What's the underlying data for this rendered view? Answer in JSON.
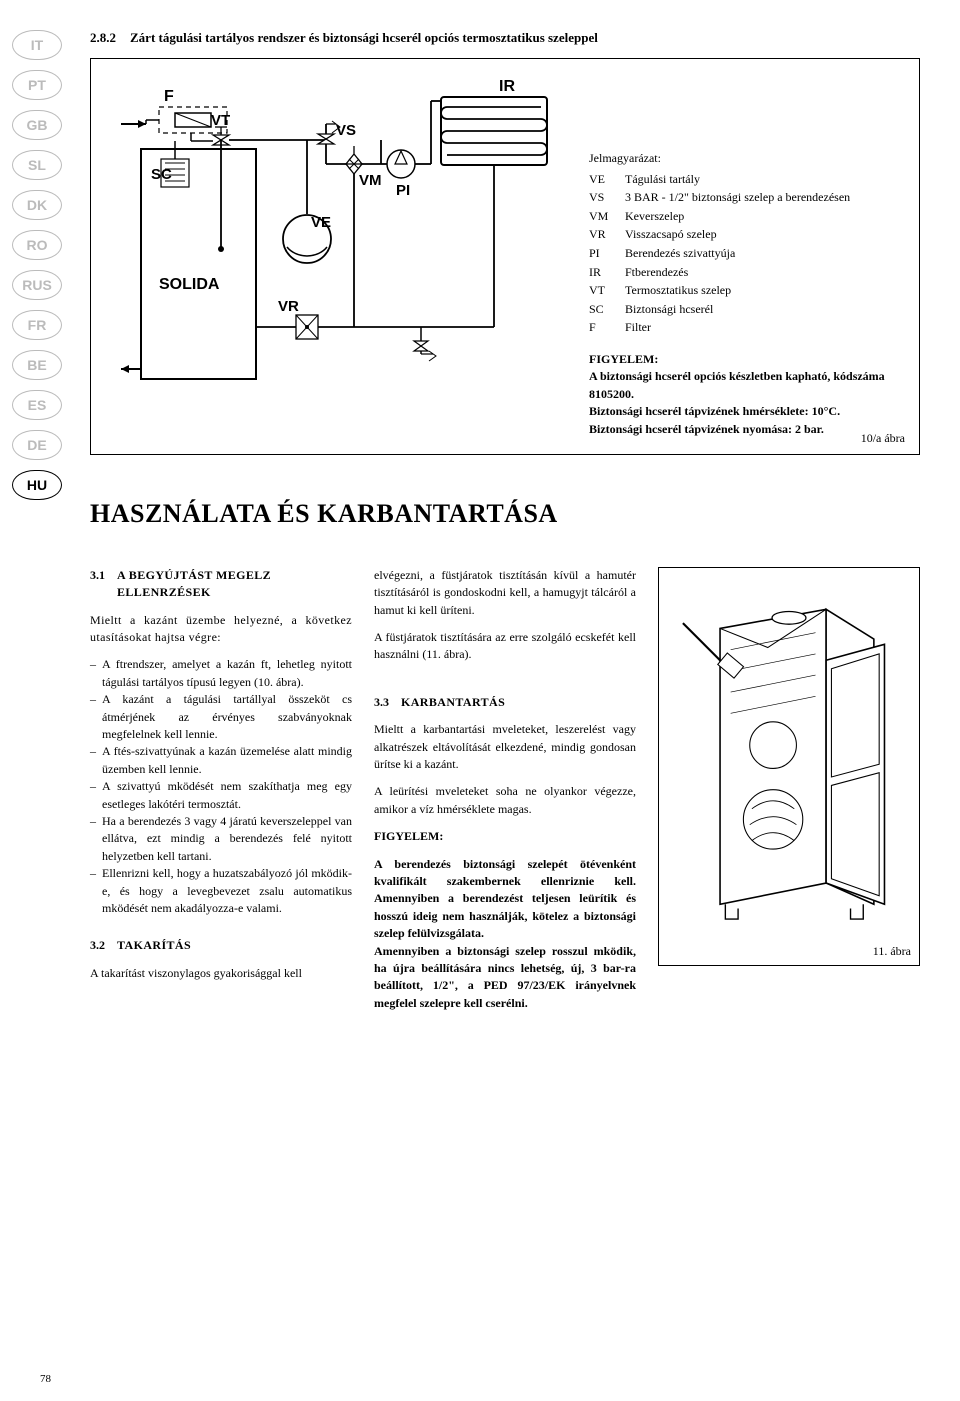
{
  "lang_codes": [
    "IT",
    "PT",
    "GB",
    "SL",
    "DK",
    "RO",
    "RUS",
    "FR",
    "BE",
    "ES",
    "DE",
    "HU"
  ],
  "active_lang": "HU",
  "section": {
    "number": "2.8.2",
    "title": "Zárt tágulási tartályos rendszer és biztonsági hcserél opciós termosztatikus szeleppel"
  },
  "diagram_labels": {
    "F": "F",
    "IR": "IR",
    "VT": "VT",
    "VS": "VS",
    "SC": "SC",
    "VM": "VM",
    "VE": "VE",
    "PI": "PI",
    "VR": "VR",
    "SOLIDA": "SOLIDA"
  },
  "legend": {
    "title": "Jelmagyarázat:",
    "items": [
      {
        "k": "VE",
        "v": "Tágulási tartály"
      },
      {
        "k": "VS",
        "v": "3 BAR - 1/2\" biztonsági szelep a berendezésen"
      },
      {
        "k": "VM",
        "v": "Keverszelep"
      },
      {
        "k": "VR",
        "v": "Visszacsapó szelep"
      },
      {
        "k": "PI",
        "v": "Berendezés szivattyúja"
      },
      {
        "k": "IR",
        "v": "Ftberendezés"
      },
      {
        "k": "VT",
        "v": "Termosztatikus szelep"
      },
      {
        "k": "SC",
        "v": "Biztonsági hcserél"
      },
      {
        "k": "F",
        "v": "Filter"
      }
    ]
  },
  "warning": {
    "head": "FIGYELEM:",
    "line1": "A biztonsági hcserél opciós készletben kapható, kódszáma 8105200.",
    "line2": "Biztonsági hcserél tápvizének hmérséklete: 10°C.",
    "line3": "Biztonsági hcserél tápvizének nyomása: 2 bar."
  },
  "fig_a_label": "10/a ábra",
  "main_heading": "HASZNÁLATA ÉS KARBANTARTÁSA",
  "sub31": {
    "num": "3.1",
    "title": "A BEGYÚJTÁST MEGELZ ELLENRZÉSEK",
    "intro": "Mieltt a kazánt üzembe helyezné, a következ utasításokat hajtsa végre:",
    "bullets": [
      "A ftrendszer, amelyet a kazán ft, lehetleg nyitott tágulási tartályos típusú legyen (10. ábra).",
      "A kazánt a tágulási tartállyal összeköt cs átmérjének az érvényes szabványoknak megfelelnek kell lennie.",
      "A ftés-szivattyúnak a kazán üzemelése alatt mindig üzemben kell lennie.",
      "A szivattyú mködését nem szakíthatja meg egy esetleges lakótéri termosztát.",
      "Ha a berendezés 3 vagy 4 járatú keverszeleppel van ellátva, ezt mindig a berendezés felé nyitott helyzetben kell tartani.",
      "Ellenrizni kell, hogy a huzatszabályozó jól mködik-e, és hogy a levegbevezet zsalu automatikus mködését nem akadályozza-e valami."
    ]
  },
  "sub32": {
    "num": "3.2",
    "title": "TAKARÍTÁS",
    "para": "A takarítást viszonylagos gyakorisággal kell"
  },
  "col2_top": {
    "p1": "elvégezni, a füstjáratok tisztításán kívül a hamutér tisztításáról is gondoskodni kell, a hamugyjt tálcáról a hamut ki kell üríteni.",
    "p2": "A füstjáratok tisztítására az erre szolgáló ecskefét kell használni (11. ábra)."
  },
  "sub33": {
    "num": "3.3",
    "title": "KARBANTARTÁS",
    "p1": "Mieltt a karbantartási mveleteket, leszerelést vagy alkatrészek eltávolítását elkezdené, mindig gondosan ürítse ki a kazánt.",
    "p2": "A leürítési mveleteket soha ne olyankor végezze, amikor a víz hmérséklete magas.",
    "warn_head": "FIGYELEM:",
    "warn_b1": "A berendezés biztonsági szelepét ötévenként kvalifikált szakembernek ellenriznie kell. Amennyiben a berendezést teljesen leürítik és hosszú ideig nem használják, kötelez a biztonsági szelep felülvizsgálata.",
    "warn_b2": "Amennyiben a biztonsági szelep rosszul mködik, ha újra beállítására nincs lehetség, új, 3 bar-ra beállított, 1/2\", a PED 97/23/EK irányelvnek megfelel szelepre kell cserélni."
  },
  "fig_b_label": "11. ábra",
  "page_number": "78",
  "colors": {
    "line": "#000000",
    "gray": "#bbbbbb",
    "bg": "#ffffff"
  }
}
